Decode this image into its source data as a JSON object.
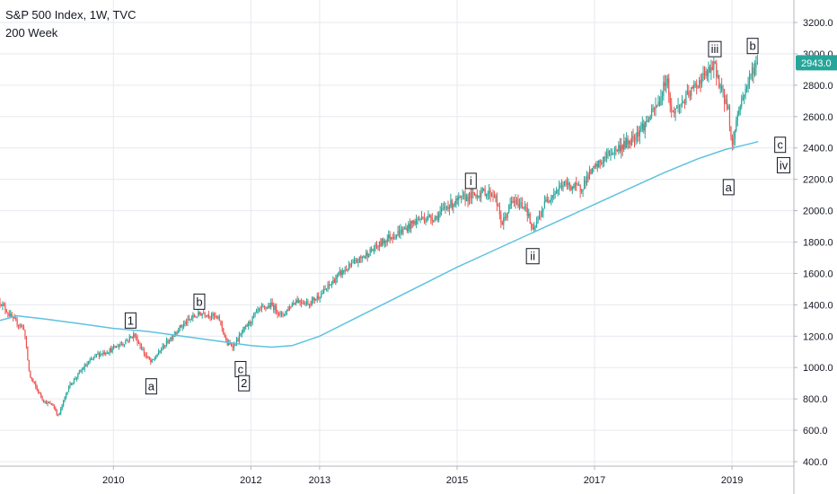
{
  "header": {
    "title": "S&P 500 Index, 1W, TVC",
    "study": "200 Week"
  },
  "colors": {
    "up": "#26a69a",
    "down": "#ef5350",
    "ma": "#5ec2e0",
    "grid": "#e6e9ef",
    "price_tag": "#26a69a"
  },
  "price_tag": "2943.0",
  "chart_data": {
    "type": "candlestick",
    "symbol": "S&P 500 Index",
    "interval": "1W",
    "ylim": [
      400,
      3300
    ],
    "y_ticks": [
      "3200.0",
      "3000.0",
      "2800.0",
      "2600.0",
      "2400.0",
      "2200.0",
      "2000.0",
      "1800.0",
      "1600.0",
      "1400.0",
      "1200.0",
      "1000.0",
      "800.0",
      "600.0",
      "400.0"
    ],
    "x_ticks": [
      "2010",
      "2012",
      "2013",
      "2015",
      "2017",
      "2019"
    ],
    "x_tick_dates": [
      2010.0,
      2012.0,
      2013.0,
      2015.0,
      2017.0,
      2019.0
    ],
    "xlim": [
      2008.35,
      2019.9
    ],
    "last_price": 2943.0,
    "price_path": [
      [
        2008.35,
        1420
      ],
      [
        2008.55,
        1300
      ],
      [
        2008.7,
        1250
      ],
      [
        2008.78,
        950
      ],
      [
        2008.9,
        850
      ],
      [
        2009.0,
        780
      ],
      [
        2009.12,
        760
      ],
      [
        2009.2,
        690
      ],
      [
        2009.35,
        880
      ],
      [
        2009.55,
        990
      ],
      [
        2009.75,
        1080
      ],
      [
        2009.95,
        1110
      ],
      [
        2010.15,
        1160
      ],
      [
        2010.3,
        1210
      ],
      [
        2010.45,
        1090
      ],
      [
        2010.55,
        1030
      ],
      [
        2010.7,
        1120
      ],
      [
        2010.95,
        1250
      ],
      [
        2011.15,
        1320
      ],
      [
        2011.3,
        1350
      ],
      [
        2011.45,
        1330
      ],
      [
        2011.55,
        1300
      ],
      [
        2011.65,
        1150
      ],
      [
        2011.75,
        1140
      ],
      [
        2011.9,
        1240
      ],
      [
        2012.1,
        1360
      ],
      [
        2012.3,
        1400
      ],
      [
        2012.45,
        1330
      ],
      [
        2012.65,
        1430
      ],
      [
        2012.85,
        1410
      ],
      [
        2013.05,
        1480
      ],
      [
        2013.3,
        1600
      ],
      [
        2013.55,
        1680
      ],
      [
        2013.8,
        1760
      ],
      [
        2014.0,
        1830
      ],
      [
        2014.2,
        1870
      ],
      [
        2014.45,
        1950
      ],
      [
        2014.7,
        1960
      ],
      [
        2014.85,
        2030
      ],
      [
        2015.1,
        2080
      ],
      [
        2015.4,
        2120
      ],
      [
        2015.55,
        2100
      ],
      [
        2015.65,
        1910
      ],
      [
        2015.8,
        2060
      ],
      [
        2016.0,
        2030
      ],
      [
        2016.1,
        1860
      ],
      [
        2016.3,
        2070
      ],
      [
        2016.55,
        2170
      ],
      [
        2016.8,
        2140
      ],
      [
        2016.9,
        2220
      ],
      [
        2017.2,
        2360
      ],
      [
        2017.5,
        2440
      ],
      [
        2017.75,
        2560
      ],
      [
        2017.95,
        2700
      ],
      [
        2018.05,
        2860
      ],
      [
        2018.12,
        2620
      ],
      [
        2018.3,
        2700
      ],
      [
        2018.55,
        2840
      ],
      [
        2018.75,
        2920
      ],
      [
        2018.85,
        2760
      ],
      [
        2018.95,
        2640
      ],
      [
        2019.0,
        2400
      ],
      [
        2019.08,
        2620
      ],
      [
        2019.2,
        2780
      ],
      [
        2019.3,
        2900
      ],
      [
        2019.38,
        2943
      ]
    ],
    "series": [
      {
        "name": "200 Week",
        "x": [
          2008.35,
          2008.6,
          2009.0,
          2009.5,
          2010.0,
          2010.5,
          2011.0,
          2011.5,
          2012.0,
          2012.3,
          2012.6,
          2013.0,
          2013.5,
          2014.0,
          2014.5,
          2015.0,
          2015.5,
          2016.0,
          2016.5,
          2017.0,
          2017.5,
          2018.0,
          2018.5,
          2018.9,
          2019.2,
          2019.38
        ],
        "values": [
          1300,
          1330,
          1310,
          1280,
          1250,
          1230,
          1200,
          1170,
          1140,
          1130,
          1140,
          1200,
          1310,
          1420,
          1530,
          1640,
          1740,
          1840,
          1940,
          2040,
          2140,
          2240,
          2330,
          2390,
          2420,
          2440
        ]
      }
    ],
    "annotations": [
      {
        "text": "1",
        "x": 2010.25,
        "y": 1300
      },
      {
        "text": "a",
        "x": 2010.55,
        "y": 880
      },
      {
        "text": "b",
        "x": 2011.25,
        "y": 1420
      },
      {
        "text": "c",
        "x": 2011.85,
        "y": 990
      },
      {
        "text": "2",
        "x": 2011.9,
        "y": 900
      },
      {
        "text": "i",
        "x": 2015.2,
        "y": 2190
      },
      {
        "text": "ii",
        "x": 2016.1,
        "y": 1710
      },
      {
        "text": "iii",
        "x": 2018.75,
        "y": 3030
      },
      {
        "text": "b",
        "x": 2019.3,
        "y": 3050
      },
      {
        "text": "a",
        "x": 2018.95,
        "y": 2150
      },
      {
        "text": "c",
        "x": 2019.7,
        "y": 2420
      },
      {
        "text": "iv",
        "x": 2019.75,
        "y": 2290
      }
    ]
  }
}
